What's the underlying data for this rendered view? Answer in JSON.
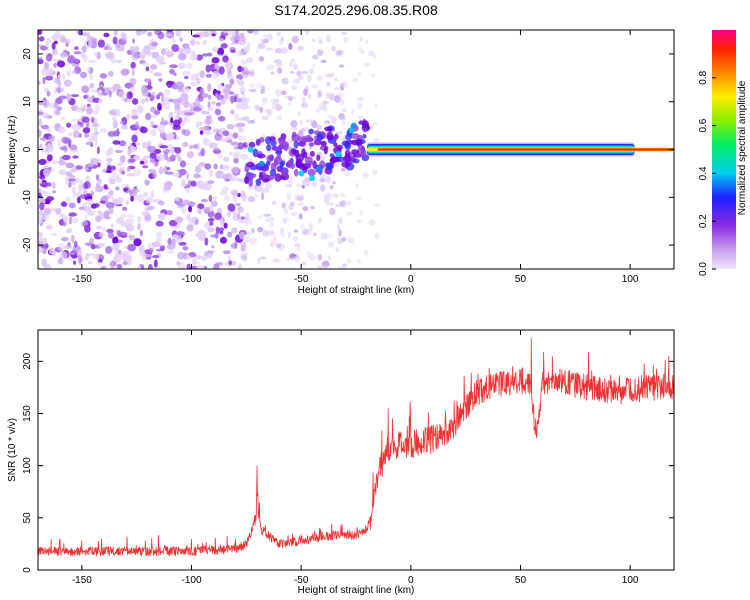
{
  "title": "S174.2025.296.08.35.R08",
  "chart_data": [
    {
      "type": "heatmap",
      "id": "spectrogram",
      "xlabel": "Height of straight line (km)",
      "ylabel": "Frequency (Hz)",
      "xlim": [
        -170,
        120
      ],
      "ylim": [
        -25,
        25
      ],
      "xticks": [
        -150,
        -100,
        -50,
        0,
        50,
        100
      ],
      "xtick_labels": [
        "-150",
        "-100",
        "-50",
        "0",
        "50",
        "100"
      ],
      "yticks": [
        -20,
        -10,
        0,
        10,
        20
      ],
      "ytick_labels": [
        "-20",
        "-10",
        "0",
        "10",
        "20"
      ],
      "colorbar": {
        "label": "Normalized spectral amplitude",
        "range": [
          0,
          1
        ],
        "ticks": [
          0.0,
          0.2,
          0.4,
          0.6,
          0.8
        ],
        "tick_labels": [
          "0.0",
          "0.2",
          "0.4",
          "0.6",
          "0.8"
        ]
      },
      "regions": [
        {
          "name": "noise-dense",
          "x_range": [
            -170,
            -75
          ],
          "freq_range": [
            -25,
            25
          ],
          "amplitude": 0.15
        },
        {
          "name": "noise-sparse",
          "x_range": [
            -75,
            -30
          ],
          "freq_range": [
            -25,
            25
          ],
          "amplitude": 0.08
        },
        {
          "name": "emerging-signal",
          "x_range": [
            -75,
            -20
          ],
          "freq_range": [
            -6,
            4
          ],
          "amplitude": 0.3
        },
        {
          "name": "strong-signal",
          "x_range": [
            -20,
            120
          ],
          "center_freq": 0,
          "amplitude": 0.95
        }
      ]
    },
    {
      "type": "line",
      "id": "snr",
      "xlabel": "Height of straight line (km)",
      "ylabel": "SNR (10 * v/v)",
      "xlim": [
        -170,
        120
      ],
      "ylim": [
        0,
        230
      ],
      "xticks": [
        -150,
        -100,
        -50,
        0,
        50,
        100
      ],
      "xtick_labels": [
        "-150",
        "-100",
        "-50",
        "0",
        "50",
        "100"
      ],
      "yticks": [
        0,
        50,
        100,
        150,
        200
      ],
      "ytick_labels": [
        "0",
        "50",
        "100",
        "150",
        "200"
      ],
      "series": [
        {
          "name": "SNR",
          "color": "#ee3333",
          "x": [
            -170,
            -150,
            -120,
            -100,
            -80,
            -75,
            -72,
            -70,
            -68,
            -60,
            -50,
            -40,
            -30,
            -25,
            -20,
            -17,
            -15,
            -12,
            -10,
            -5,
            0,
            5,
            10,
            15,
            20,
            25,
            30,
            40,
            50,
            55,
            57,
            60,
            70,
            80,
            90,
            100,
            110,
            120
          ],
          "values": [
            18,
            18,
            18,
            18,
            20,
            25,
            40,
            70,
            38,
            25,
            28,
            32,
            35,
            32,
            40,
            60,
            90,
            110,
            115,
            120,
            118,
            125,
            125,
            130,
            140,
            155,
            170,
            178,
            182,
            178,
            125,
            178,
            180,
            175,
            172,
            172,
            175,
            175
          ]
        }
      ]
    }
  ]
}
